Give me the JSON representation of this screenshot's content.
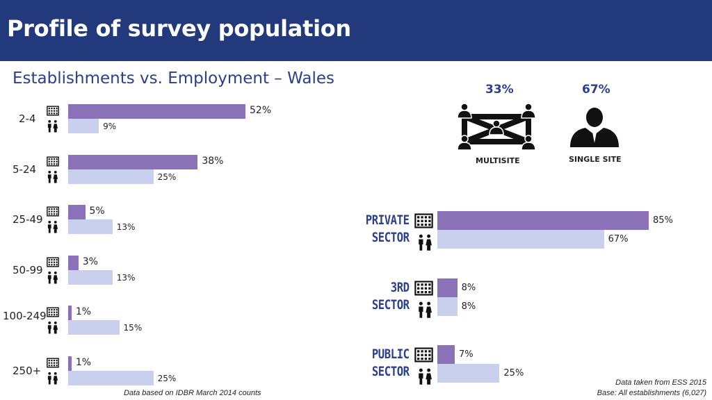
{
  "header": {
    "title": "Profile of survey population"
  },
  "subtitle": "Establishments vs. Employment – Wales",
  "colors": {
    "establishments": "#8b72b8",
    "employment": "#c8d0ee",
    "header_bg": "#223a7c",
    "accent_text": "#2b3f8c"
  },
  "icons": {
    "establishment": "building-icon",
    "employment": "people-icon",
    "multisite": "network-people-icon",
    "single_site": "person-icon"
  },
  "site": {
    "multisite": {
      "value": "33%",
      "label": "MULTISITE"
    },
    "single": {
      "value": "67%",
      "label": "SINGLE SITE"
    }
  },
  "chart_data": [
    {
      "type": "bar",
      "orientation": "horizontal",
      "categories": [
        "2-4",
        "5-24",
        "25-49",
        "50-99",
        "100-249",
        "250+"
      ],
      "series": [
        {
          "values": [
            52,
            38,
            5,
            3,
            1,
            1
          ],
          "labels": [
            "52%",
            "38%",
            "5%",
            "3%",
            "1%",
            "1%"
          ]
        },
        {
          "values": [
            9,
            25,
            13,
            13,
            15,
            25
          ],
          "labels": [
            "9%",
            "25%",
            "13%",
            "13%",
            "15%",
            "25%"
          ]
        }
      ],
      "xlim": [
        0,
        100
      ],
      "grid": false
    },
    {
      "type": "bar",
      "orientation": "horizontal",
      "categories": [
        "PRIVATE SECTOR",
        "3RD SECTOR",
        "PUBLIC SECTOR"
      ],
      "category_lines": [
        [
          "PRIVATE",
          "SECTOR"
        ],
        [
          "3RD",
          "SECTOR"
        ],
        [
          "PUBLIC",
          "SECTOR"
        ]
      ],
      "series": [
        {
          "values": [
            85,
            8,
            7
          ],
          "labels": [
            "85%",
            "8%",
            "7%"
          ]
        },
        {
          "values": [
            67,
            8,
            25
          ],
          "labels": [
            "67%",
            "8%",
            "25%"
          ]
        }
      ],
      "xlim": [
        0,
        100
      ],
      "grid": false
    }
  ],
  "notes": {
    "left": "Data based on IDBR March 2014 counts",
    "right_line1": "Data taken from ESS 2015",
    "right_line2": "Base: All establishments (6,027)"
  }
}
